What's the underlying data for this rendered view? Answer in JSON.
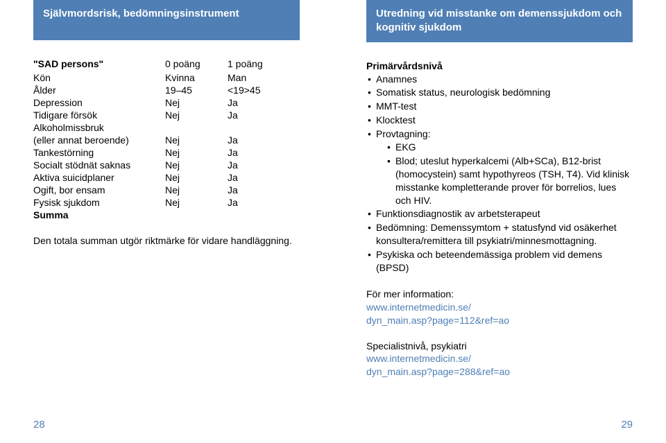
{
  "colors": {
    "header_bg": "#4f7fb5",
    "header_fg": "#ffffff",
    "text": "#000000",
    "link": "#4f7fb5",
    "pagenum": "#4f7fb5",
    "page_bg": "#ffffff"
  },
  "left": {
    "header": "Självmordsrisk, bedömningsinstrument",
    "subtitle": "\"SAD persons\"",
    "columns": [
      "",
      "0 poäng",
      "1 poäng"
    ],
    "rows": [
      [
        "Kön",
        "Kvinna",
        "Man"
      ],
      [
        "Ålder",
        "19–45",
        "<19>45"
      ],
      [
        "Depression",
        "Nej",
        "Ja"
      ],
      [
        "Tidigare försök",
        "Nej",
        "Ja"
      ],
      [
        "Alkoholmissbruk",
        "",
        ""
      ],
      [
        "(eller annat beroende)",
        "Nej",
        "Ja"
      ],
      [
        "Tankestörning",
        "Nej",
        "Ja"
      ],
      [
        "Socialt stödnät saknas",
        "Nej",
        "Ja"
      ],
      [
        "Aktiva suicidplaner",
        "Nej",
        "Ja"
      ],
      [
        "Ogift, bor ensam",
        "Nej",
        "Ja"
      ],
      [
        "Fysisk sjukdom",
        "Nej",
        "Ja"
      ],
      [
        "Summa",
        "",
        ""
      ]
    ],
    "note": "Den totala summan utgör riktmärke för vidare handläggning.",
    "pagenum": "28"
  },
  "right": {
    "header": "Utredning vid misstanke om demenssjukdom och kognitiv sjukdom",
    "section_title": "Primärvårdsnivå",
    "bullets": [
      "Anamnes",
      "Somatisk status, neurologisk bedömning",
      "MMT-test",
      "Klocktest"
    ],
    "provtagning_label": "Provtagning:",
    "provtagning_items": [
      "EKG",
      "Blod; uteslut hyperkalcemi (Alb+SCa), B12-brist (homocystein) samt hypothyreos (TSH, T4). Vid klinisk misstanke kompletterande prover för borrelios, lues och HIV."
    ],
    "bullets2": [
      "Funktionsdiagnostik av arbetsterapeut",
      "Bedömning: Demenssymtom + statusfynd vid osäkerhet konsultera/remittera till psykiatri/minnesmottagning.",
      "Psykiska och beteendemässiga problem vid demens (BPSD)"
    ],
    "info1_label": "För mer information:",
    "info1_link1": "www.internetmedicin.se/",
    "info1_link2": "dyn_main.asp?page=112&ref=ao",
    "info2_label": "Specialistnivå, psykiatri",
    "info2_link1": "www.internetmedicin.se/",
    "info2_link2": "dyn_main.asp?page=288&ref=ao",
    "pagenum": "29"
  }
}
